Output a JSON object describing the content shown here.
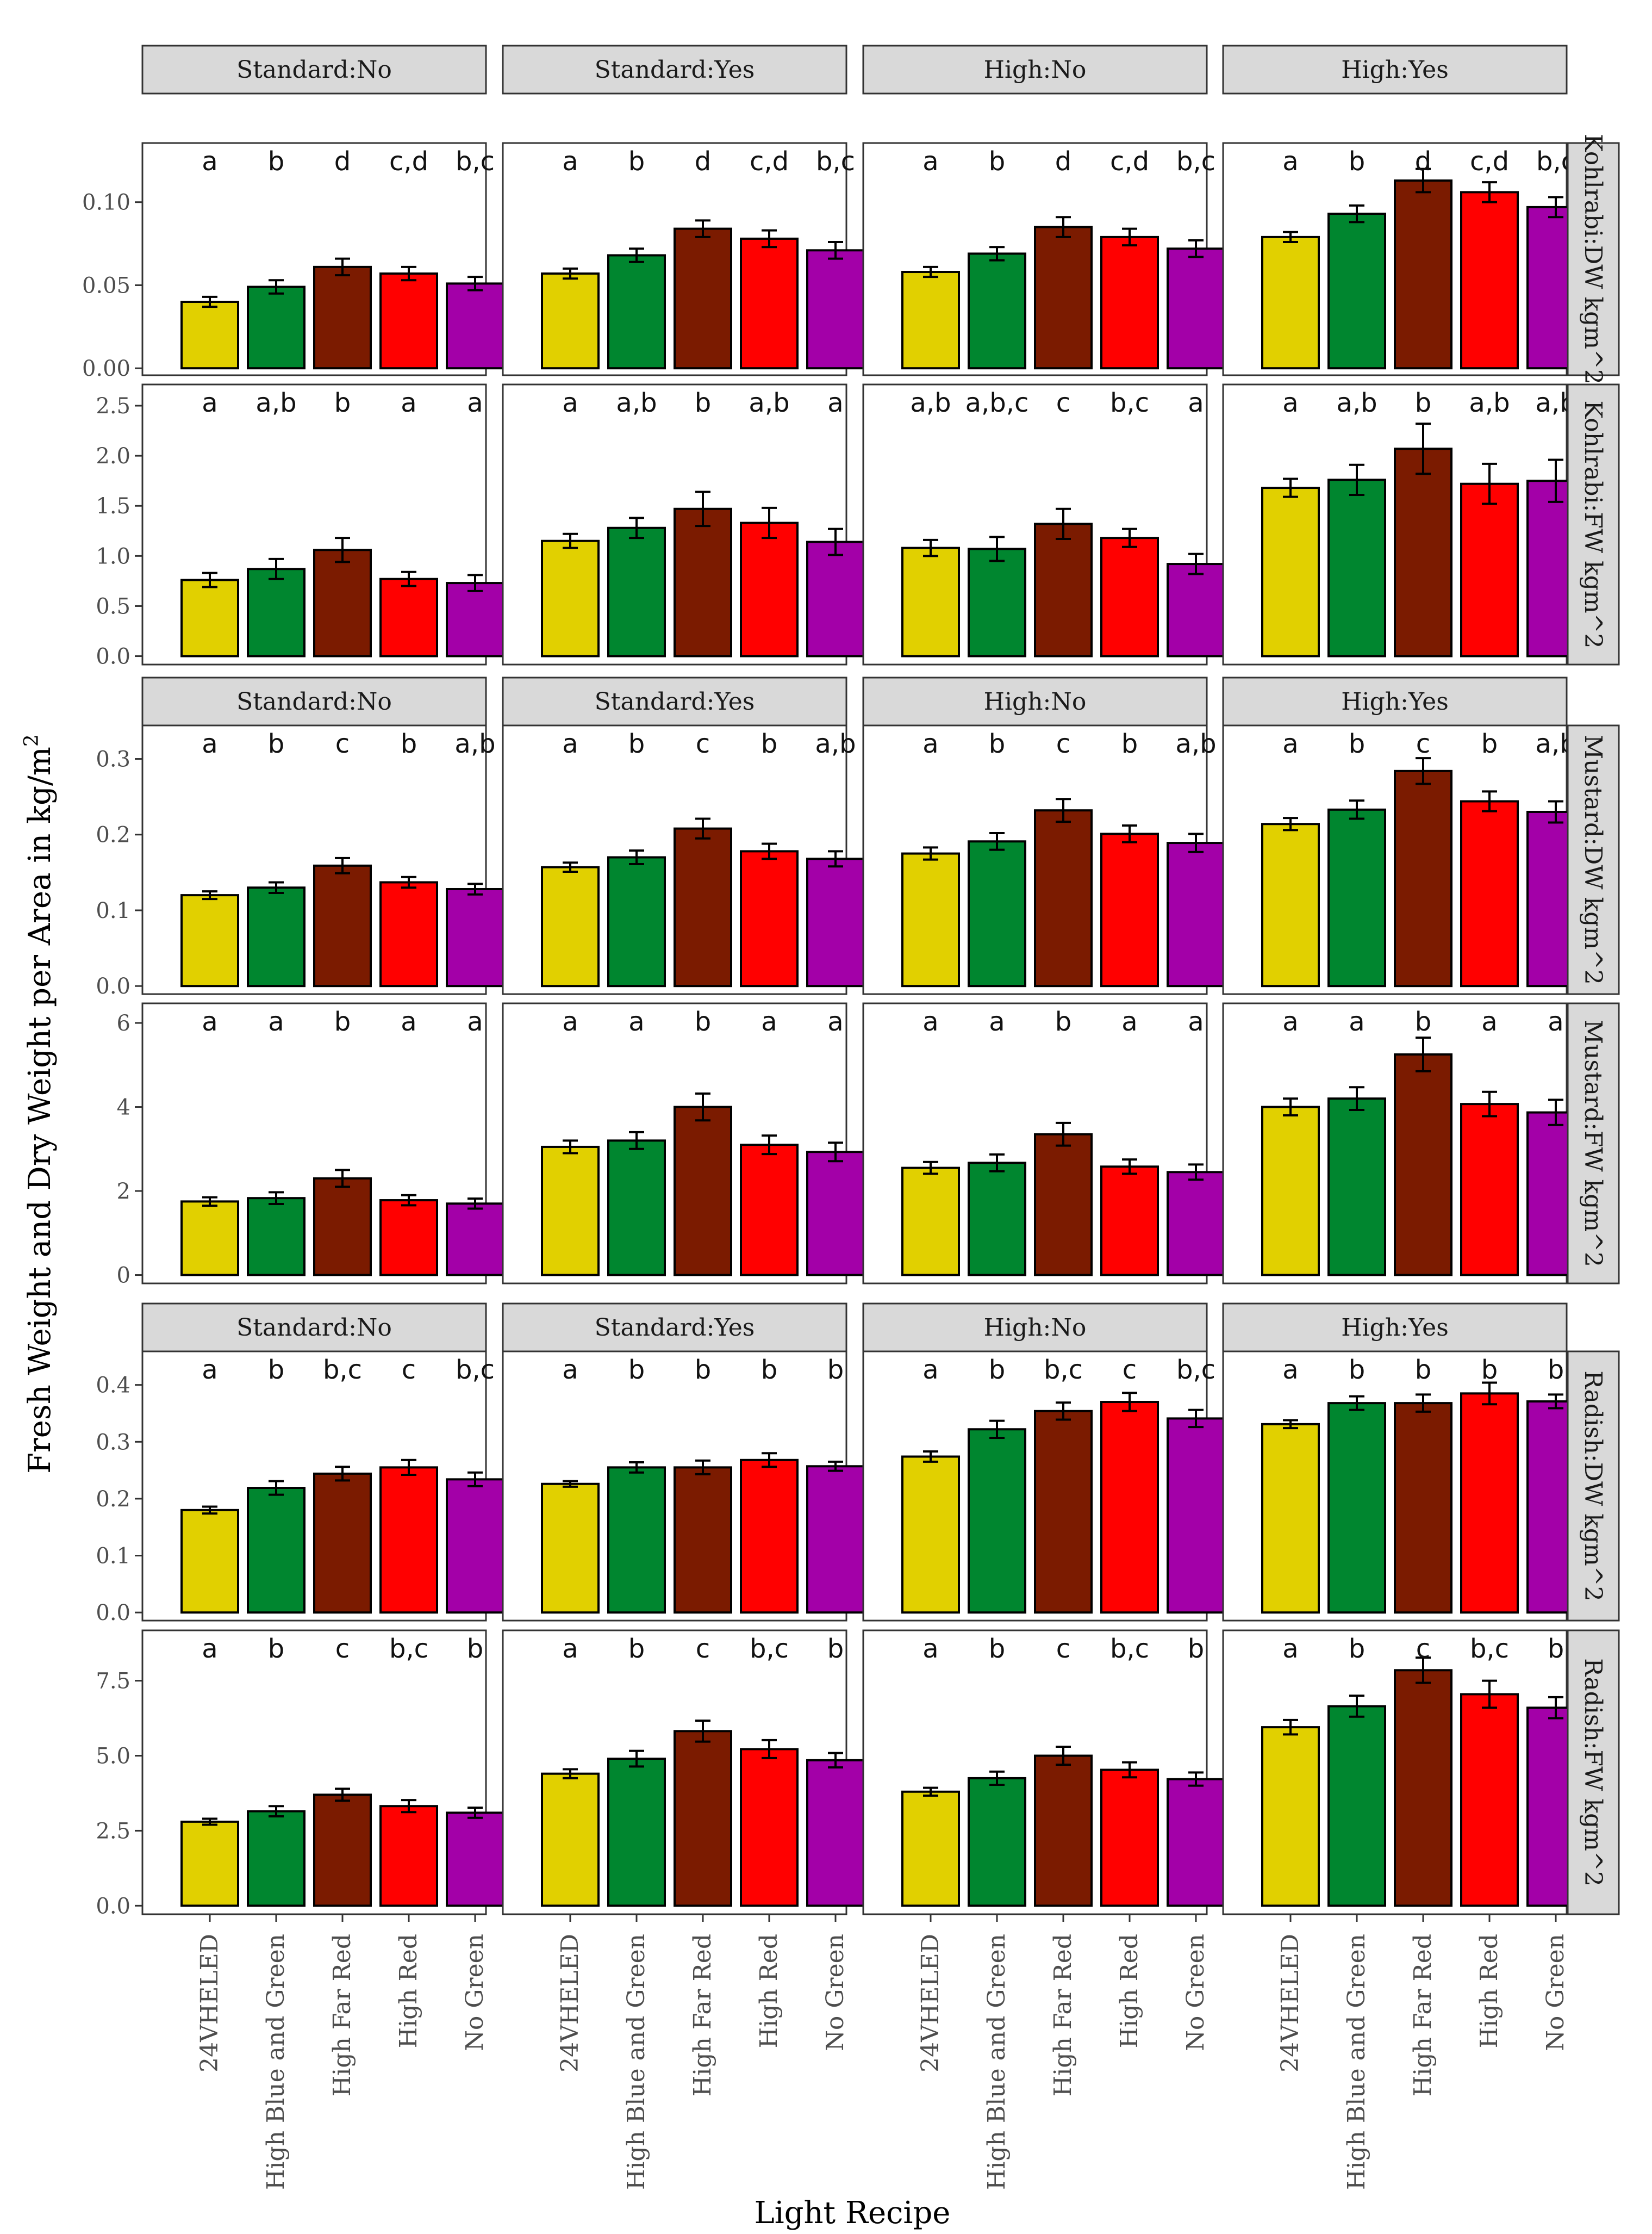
{
  "chart_data": {
    "type": "bar",
    "xlabel": "Light Recipe",
    "ylabel": "Fresh Weight and Dry Weight per Area in kg/m",
    "ylabel_superscript": "2",
    "categories": [
      "24VHELED",
      "High Blue and Green",
      "High Far Red",
      "High Red",
      "No Green"
    ],
    "colors": [
      "#e1d000",
      "#00862f",
      "#7b1b00",
      "#ff0000",
      "#a300a8"
    ],
    "columns": [
      "Standard:No",
      "Standard:Yes",
      "High:No",
      "High:Yes"
    ],
    "rows": [
      {
        "label": "Kohlrabi:DW kgm^2",
        "ylim": [
          0,
          0.13
        ],
        "ticks": [
          0.0,
          0.05,
          0.1
        ],
        "tick_labels": [
          "0.00",
          "0.05",
          "0.10"
        ],
        "panels": [
          {
            "values": [
              0.04,
              0.049,
              0.061,
              0.057,
              0.051
            ],
            "errors": [
              0.003,
              0.004,
              0.005,
              0.004,
              0.004
            ],
            "letters": [
              "a",
              "b",
              "d",
              "c,d",
              "b,c"
            ]
          },
          {
            "values": [
              0.057,
              0.068,
              0.084,
              0.078,
              0.071
            ],
            "errors": [
              0.003,
              0.004,
              0.005,
              0.005,
              0.005
            ],
            "letters": [
              "a",
              "b",
              "d",
              "c,d",
              "b,c"
            ]
          },
          {
            "values": [
              0.058,
              0.069,
              0.085,
              0.079,
              0.072
            ],
            "errors": [
              0.003,
              0.004,
              0.006,
              0.005,
              0.005
            ],
            "letters": [
              "a",
              "b",
              "d",
              "c,d",
              "b,c"
            ]
          },
          {
            "values": [
              0.079,
              0.093,
              0.113,
              0.106,
              0.097
            ],
            "errors": [
              0.003,
              0.005,
              0.007,
              0.006,
              0.006
            ],
            "letters": [
              "a",
              "b",
              "d",
              "c,d",
              "b,c"
            ]
          }
        ]
      },
      {
        "label": "Kohlrabi:FW kgm^2",
        "ylim": [
          0,
          2.6
        ],
        "ticks": [
          0.0,
          0.5,
          1.0,
          1.5,
          2.0,
          2.5
        ],
        "tick_labels": [
          "0.0",
          "0.5",
          "1.0",
          "1.5",
          "2.0",
          "2.5"
        ],
        "panels": [
          {
            "values": [
              0.76,
              0.87,
              1.06,
              0.77,
              0.73
            ],
            "errors": [
              0.07,
              0.1,
              0.12,
              0.07,
              0.08
            ],
            "letters": [
              "a",
              "a,b",
              "b",
              "a",
              "a"
            ]
          },
          {
            "values": [
              1.15,
              1.28,
              1.47,
              1.33,
              1.14
            ],
            "errors": [
              0.07,
              0.1,
              0.17,
              0.15,
              0.13
            ],
            "letters": [
              "a",
              "a,b",
              "b",
              "a,b",
              "a"
            ]
          },
          {
            "values": [
              1.08,
              1.07,
              1.32,
              1.18,
              0.92
            ],
            "errors": [
              0.08,
              0.12,
              0.15,
              0.09,
              0.1
            ],
            "letters": [
              "a,b",
              "a,b,c",
              "c",
              "b,c",
              "a"
            ]
          },
          {
            "values": [
              1.68,
              1.76,
              2.07,
              1.72,
              1.75
            ],
            "errors": [
              0.09,
              0.15,
              0.25,
              0.2,
              0.21
            ],
            "letters": [
              "a",
              "a,b",
              "b",
              "a,b",
              "a,b"
            ]
          }
        ]
      },
      {
        "label": "Mustard:DW kgm^2",
        "ylim": [
          0,
          0.33
        ],
        "ticks": [
          0.0,
          0.1,
          0.2,
          0.3
        ],
        "tick_labels": [
          "0.0",
          "0.1",
          "0.2",
          "0.3"
        ],
        "panels": [
          {
            "values": [
              0.12,
              0.13,
              0.159,
              0.137,
              0.128
            ],
            "errors": [
              0.005,
              0.007,
              0.01,
              0.007,
              0.007
            ],
            "letters": [
              "a",
              "b",
              "c",
              "b",
              "a,b"
            ]
          },
          {
            "values": [
              0.157,
              0.17,
              0.208,
              0.178,
              0.168
            ],
            "errors": [
              0.006,
              0.009,
              0.013,
              0.01,
              0.01
            ],
            "letters": [
              "a",
              "b",
              "c",
              "b",
              "a,b"
            ]
          },
          {
            "values": [
              0.175,
              0.191,
              0.232,
              0.201,
              0.189
            ],
            "errors": [
              0.008,
              0.011,
              0.015,
              0.011,
              0.012
            ],
            "letters": [
              "a",
              "b",
              "c",
              "b",
              "a,b"
            ]
          },
          {
            "values": [
              0.214,
              0.233,
              0.284,
              0.244,
              0.23
            ],
            "errors": [
              0.008,
              0.012,
              0.017,
              0.013,
              0.014
            ],
            "letters": [
              "a",
              "b",
              "c",
              "b",
              "a,b"
            ]
          }
        ]
      },
      {
        "label": "Mustard:FW kgm^2",
        "ylim": [
          0,
          6.2
        ],
        "ticks": [
          0,
          2,
          4,
          6
        ],
        "tick_labels": [
          "0",
          "2",
          "4",
          "6"
        ],
        "panels": [
          {
            "values": [
              1.75,
              1.83,
              2.3,
              1.78,
              1.7
            ],
            "errors": [
              0.1,
              0.14,
              0.2,
              0.12,
              0.12
            ],
            "letters": [
              "a",
              "a",
              "b",
              "a",
              "a"
            ]
          },
          {
            "values": [
              3.05,
              3.2,
              4.0,
              3.1,
              2.93
            ],
            "errors": [
              0.15,
              0.2,
              0.32,
              0.22,
              0.22
            ],
            "letters": [
              "a",
              "a",
              "b",
              "a",
              "a"
            ]
          },
          {
            "values": [
              2.55,
              2.67,
              3.35,
              2.58,
              2.45
            ],
            "errors": [
              0.14,
              0.2,
              0.27,
              0.17,
              0.18
            ],
            "letters": [
              "a",
              "a",
              "b",
              "a",
              "a"
            ]
          },
          {
            "values": [
              4.0,
              4.2,
              5.25,
              4.07,
              3.87
            ],
            "errors": [
              0.2,
              0.27,
              0.4,
              0.29,
              0.3
            ],
            "letters": [
              "a",
              "a",
              "b",
              "a",
              "a"
            ]
          }
        ]
      },
      {
        "label": "Radish:DW kgm^2",
        "ylim": [
          0,
          0.44
        ],
        "ticks": [
          0.0,
          0.1,
          0.2,
          0.3,
          0.4
        ],
        "tick_labels": [
          "0.0",
          "0.1",
          "0.2",
          "0.3",
          "0.4"
        ],
        "panels": [
          {
            "values": [
              0.18,
              0.219,
              0.244,
              0.255,
              0.234
            ],
            "errors": [
              0.006,
              0.012,
              0.012,
              0.013,
              0.012
            ],
            "letters": [
              "a",
              "b",
              "b,c",
              "c",
              "b,c"
            ]
          },
          {
            "values": [
              0.226,
              0.255,
              0.255,
              0.268,
              0.257
            ],
            "errors": [
              0.005,
              0.009,
              0.012,
              0.012,
              0.008
            ],
            "letters": [
              "a",
              "b",
              "b",
              "b",
              "b"
            ]
          },
          {
            "values": [
              0.274,
              0.322,
              0.354,
              0.37,
              0.341
            ],
            "errors": [
              0.009,
              0.015,
              0.015,
              0.016,
              0.015
            ],
            "letters": [
              "a",
              "b",
              "b,c",
              "c",
              "b,c"
            ]
          },
          {
            "values": [
              0.331,
              0.368,
              0.368,
              0.385,
              0.371
            ],
            "errors": [
              0.007,
              0.012,
              0.015,
              0.019,
              0.012
            ],
            "letters": [
              "a",
              "b",
              "b",
              "b",
              "b"
            ]
          }
        ]
      },
      {
        "label": "Radish:FW kgm^2",
        "ylim": [
          0,
          8.8
        ],
        "ticks": [
          0.0,
          2.5,
          5.0,
          7.5
        ],
        "tick_labels": [
          "0.0",
          "2.5",
          "5.0",
          "7.5"
        ],
        "panels": [
          {
            "values": [
              2.8,
              3.15,
              3.7,
              3.32,
              3.1
            ],
            "errors": [
              0.1,
              0.17,
              0.2,
              0.2,
              0.17
            ],
            "letters": [
              "a",
              "b",
              "c",
              "b,c",
              "b"
            ]
          },
          {
            "values": [
              4.4,
              4.9,
              5.82,
              5.22,
              4.85
            ],
            "errors": [
              0.15,
              0.26,
              0.35,
              0.3,
              0.24
            ],
            "letters": [
              "a",
              "b",
              "c",
              "b,c",
              "b"
            ]
          },
          {
            "values": [
              3.8,
              4.25,
              5.0,
              4.53,
              4.22
            ],
            "errors": [
              0.13,
              0.22,
              0.3,
              0.25,
              0.22
            ],
            "letters": [
              "a",
              "b",
              "c",
              "b,c",
              "b"
            ]
          },
          {
            "values": [
              5.95,
              6.65,
              7.85,
              7.05,
              6.6
            ],
            "errors": [
              0.24,
              0.35,
              0.42,
              0.45,
              0.35
            ],
            "letters": [
              "a",
              "b",
              "c",
              "b,c",
              "b"
            ]
          }
        ]
      }
    ]
  }
}
